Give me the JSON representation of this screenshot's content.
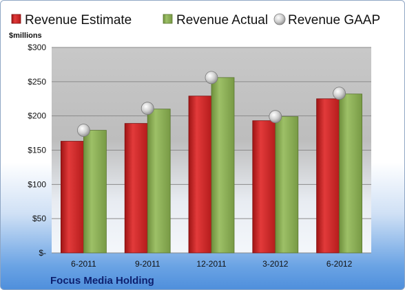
{
  "chart_data": {
    "type": "bar",
    "categories": [
      "6-2011",
      "9-2011",
      "12-2011",
      "3-2012",
      "6-2012"
    ],
    "series": [
      {
        "name": "Revenue Estimate",
        "values": [
          163,
          189,
          229,
          193,
          225
        ],
        "color": "#d42b2b",
        "kind": "bar"
      },
      {
        "name": "Revenue Actual",
        "values": [
          179,
          210,
          256,
          199,
          232
        ],
        "color": "#8db05a",
        "kind": "bar"
      },
      {
        "name": "Revenue GAAP",
        "values": [
          179,
          211,
          256,
          199,
          233
        ],
        "color": "#c9c9c9",
        "kind": "marker"
      }
    ],
    "ylim": [
      0,
      300
    ],
    "yticks": [
      0,
      50,
      100,
      150,
      200,
      250,
      300
    ],
    "ytick_labels": [
      "$-",
      "$50",
      "$100",
      "$150",
      "$200",
      "$250",
      "$300"
    ],
    "unit_label": "$millions",
    "legend_position": "top",
    "grid": true
  },
  "footer": {
    "company": "Focus Media Holding"
  }
}
